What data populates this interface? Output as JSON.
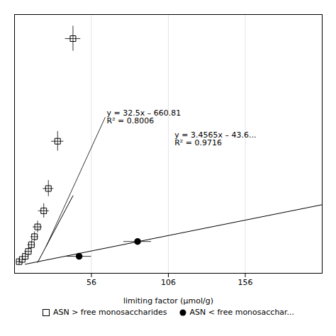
{
  "chart_data": {
    "type": "scatter",
    "xlabel": "limiting factor (μmol/g)",
    "xlim": [
      6,
      206
    ],
    "ylim": [
      -100,
      2800
    ],
    "xticks": [
      56,
      106,
      156
    ],
    "grid": true,
    "tick_labels": "x",
    "legend": "bottom",
    "series": [
      {
        "name": "ASN > free monosaccharides",
        "marker": "square",
        "color": "#000000",
        "x": [
          9.0,
          11.0,
          13.0,
          15.0,
          17.0,
          19.0,
          21.0,
          25.0,
          28.0,
          34.0,
          44.0
        ],
        "values": [
          30,
          55,
          90,
          145,
          220,
          310,
          420,
          600,
          850,
          1380,
          2530
        ],
        "xerr": [
          1.5,
          2.0,
          2.0,
          2.5,
          2.5,
          2.5,
          3.0,
          3.5,
          3.5,
          4.0,
          5.0
        ],
        "yerr": [
          25,
          30,
          35,
          40,
          45,
          55,
          65,
          80,
          90,
          110,
          140
        ]
      },
      {
        "name": "ASN < free monosacchar...",
        "marker": "circle",
        "color": "#000000",
        "x": [
          48.0,
          86.0
        ],
        "values": [
          90,
          256
        ],
        "xerr": [
          8.0,
          9.0
        ]
      }
    ],
    "lines": [
      {
        "x": [
          21.0,
          44.0
        ],
        "y": [
          21.69,
          769.19
        ],
        "color": "#000000"
      },
      {
        "x": [
          13.0,
          206.0
        ],
        "y": [
          1.3345,
          668.439
        ],
        "color": "#000000"
      }
    ],
    "annotations": [
      {
        "text": "y = 32.5x – 660.81\nR² = 0.8006",
        "x": 65,
        "y": 1650,
        "arrow_to": [
          26.5,
          200
        ]
      },
      {
        "text": "y = 3.4565x – 43.6...\nR² = 0.9716",
        "x": 110,
        "y": 1480
      }
    ]
  }
}
